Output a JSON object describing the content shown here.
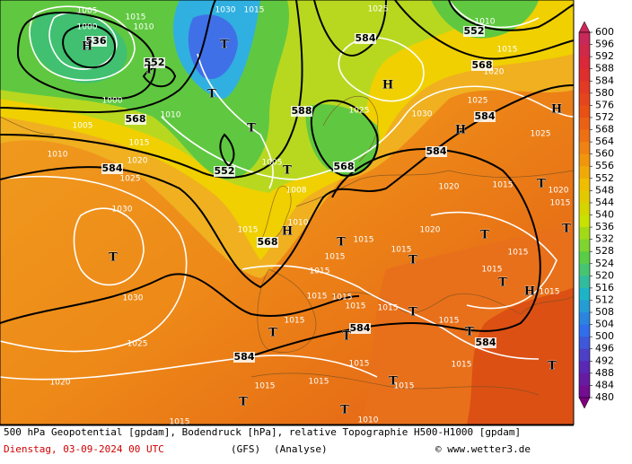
{
  "map": {
    "labels": [
      "536",
      "552",
      "552",
      "584",
      "568",
      "568",
      "584",
      "588",
      "584",
      "552",
      "568",
      "584",
      "568",
      "584",
      "584",
      "584",
      "1005",
      "1000",
      "1015",
      "1010",
      "1030",
      "1015",
      "1025",
      "1010",
      "1015",
      "1020",
      "1025",
      "1030",
      "1025",
      "1020",
      "1015",
      "1020",
      "1015",
      "1015",
      "1015",
      "1015",
      "1015",
      "1015",
      "1015",
      "1015",
      "1015",
      "1015",
      "1015",
      "1015",
      "1015",
      "1015",
      "1015",
      "1015",
      "1015",
      "1015",
      "1010",
      "1015",
      "1020",
      "1025",
      "1030",
      "1030",
      "1025",
      "1020",
      "1015",
      "1010",
      "1005",
      "1010",
      "1000",
      "1008",
      "1010",
      "1015",
      "1005",
      "1025",
      "1020",
      "1015",
      "H",
      "T",
      "H",
      "H",
      "H",
      "T",
      "T",
      "T",
      "T",
      "T",
      "T",
      "T",
      "H",
      "T",
      "T",
      "T",
      "T",
      "T",
      "T",
      "T",
      "T",
      "T",
      "H",
      "T",
      "T",
      "T"
    ]
  },
  "colorbar": {
    "levels": [
      600,
      596,
      592,
      588,
      584,
      580,
      576,
      572,
      568,
      564,
      560,
      556,
      552,
      548,
      544,
      540,
      536,
      532,
      528,
      524,
      520,
      516,
      512,
      508,
      504,
      500,
      496,
      492,
      488,
      484,
      480
    ]
  },
  "footer": {
    "title": "500 hPa Geopotential [gpdam], Bodendruck [hPa], relative Topographie H500-H1000 [gpdam]",
    "date": "Dienstag, 03-09-2024  00 UTC",
    "model": "(GFS)",
    "run": "(Analyse)",
    "credit": "© www.wetter3.de"
  }
}
